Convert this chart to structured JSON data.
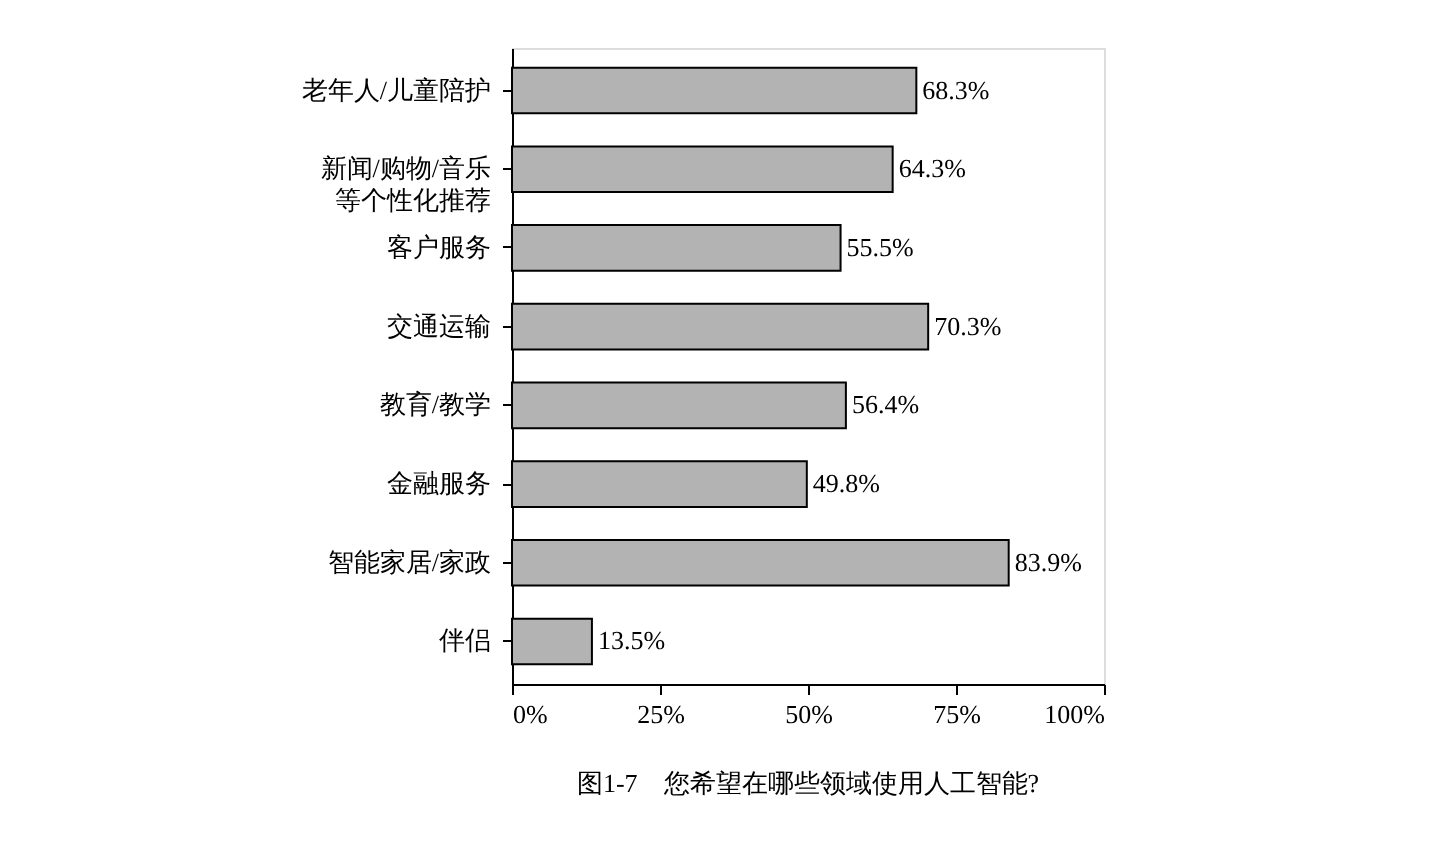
{
  "chart_data": {
    "type": "bar",
    "orientation": "horizontal",
    "title": "图1-7　您希望在哪些领域使用人工智能?",
    "categories": [
      "老年人/儿童陪护",
      "新闻/购物/音乐等个性化推荐",
      "客户服务",
      "交通运输",
      "教育/教学",
      "金融服务",
      "智能家居/家政",
      "伴侣"
    ],
    "values": [
      68.3,
      64.3,
      55.5,
      70.3,
      56.4,
      49.8,
      83.9,
      13.5
    ],
    "value_labels": [
      "68.3%",
      "64.3%",
      "55.5%",
      "70.3%",
      "56.4%",
      "49.8%",
      "83.9%",
      "13.5%"
    ],
    "color": "#b3b3b3",
    "xlim": [
      0,
      100
    ],
    "xticks": [
      {
        "value": 0,
        "label": "0%"
      },
      {
        "value": 25,
        "label": "25%"
      },
      {
        "value": 50,
        "label": "50%"
      },
      {
        "value": 75,
        "label": "75%"
      },
      {
        "value": 100,
        "label": "100%"
      }
    ],
    "grid": false
  }
}
